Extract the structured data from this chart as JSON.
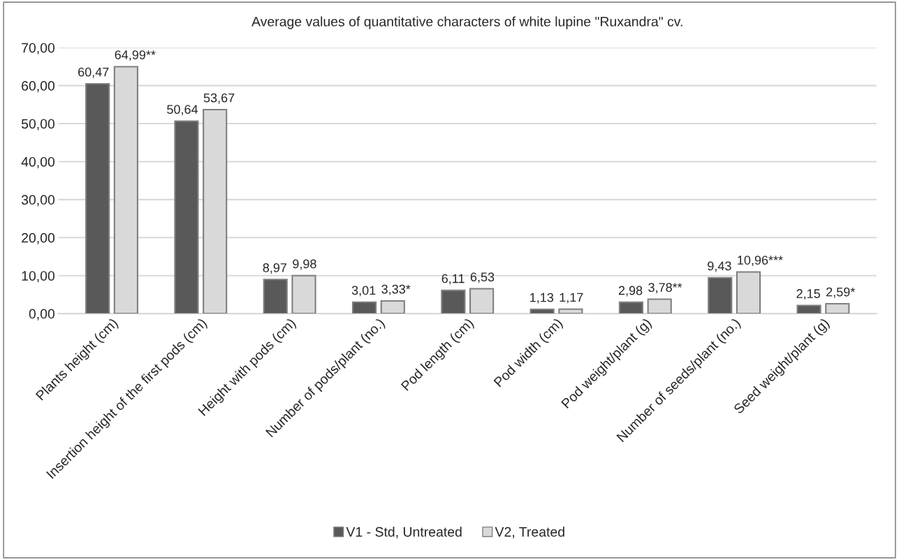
{
  "chart_data": {
    "type": "bar",
    "title": "Average values of quantitative characters of white lupine \"Ruxandra\" cv.",
    "categories": [
      "Plants height (cm)",
      "Insertion height of the first pods (cm)",
      "Height with pods (cm)",
      "Number of pods/plant (no.)",
      "Pod length (cm)",
      "Pod width (cm)",
      "Pod weight/plant (g)",
      "Number of seeds/plant (no.)",
      "Seed weight/plant (g)"
    ],
    "series": [
      {
        "name": "V1 - Std, Untreated",
        "color": "#595959",
        "values": [
          60.47,
          50.64,
          8.97,
          3.01,
          6.11,
          1.13,
          2.98,
          9.43,
          2.15
        ],
        "value_labels": [
          "60,47",
          "50,64",
          "8,97",
          "3,01",
          "6,11",
          "1,13",
          "2,98",
          "9,43",
          "2,15"
        ]
      },
      {
        "name": "V2, Treated",
        "color": "#d9d9d9",
        "values": [
          64.99,
          53.67,
          9.98,
          3.33,
          6.53,
          1.17,
          3.78,
          10.96,
          2.59
        ],
        "value_labels": [
          "64,99**",
          "53,67",
          "9,98",
          "3,33*",
          "6,53",
          "1,17",
          "3,78**",
          "10,96***",
          "2,59*"
        ]
      }
    ],
    "ylim": [
      0,
      70
    ],
    "yticks": [
      {
        "value": 0,
        "label": "0,00"
      },
      {
        "value": 10,
        "label": "10,00"
      },
      {
        "value": 20,
        "label": "20,00"
      },
      {
        "value": 30,
        "label": "30,00"
      },
      {
        "value": 40,
        "label": "40,00"
      },
      {
        "value": 50,
        "label": "50,00"
      },
      {
        "value": 60,
        "label": "60,00"
      },
      {
        "value": 70,
        "label": "70,00"
      }
    ],
    "grid": "y",
    "legend": "bottom"
  }
}
